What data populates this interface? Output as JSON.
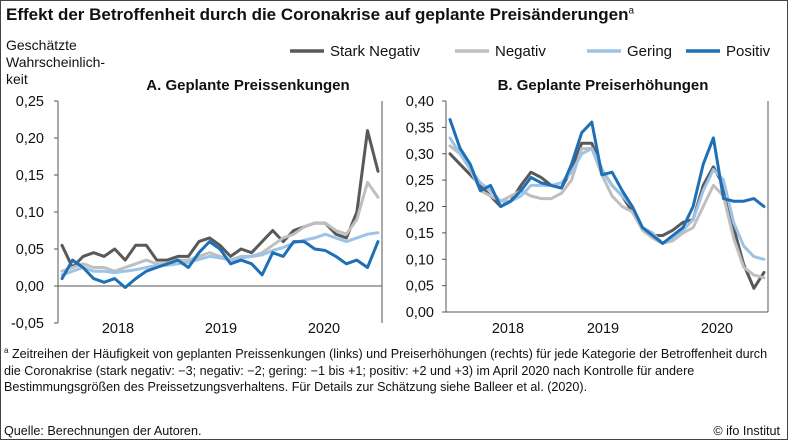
{
  "title": "Effekt der Betroffenheit durch die Coronakrise auf geplante Preisänderungen",
  "title_marker": "a",
  "ylabel": [
    "Geschätzte",
    "Wahrscheinlich-",
    "keit"
  ],
  "legend": [
    "Stark Negativ",
    "Negativ",
    "Gering",
    "Positiv"
  ],
  "footnote_marker": "a",
  "footnote": "Zeitreihen der Häufigkeit von geplanten Preissenkungen (links) und Preiserhöhungen (rechts) für jede Kategorie der Betroffenheit durch die Coronakrise (stark negativ: −3; negativ: −2; gering: −1 bis +1; positiv: +2 und +3) im April 2020 nach Kontrolle für andere Bestimmungsgrößen des Preissetzungsverhaltens. Für Details zur Schätzung siehe Balleer et al. (2020).",
  "source": "Quelle: Berechnungen der Autoren.",
  "credit": "© ifo Institut",
  "colors": {
    "stark_negativ": "#595959",
    "negativ": "#bfbfbf",
    "gering": "#9dc3e6",
    "positiv": "#1f6fb4"
  },
  "chart_data": [
    {
      "type": "line",
      "title": "A. Geplante Preissenkungen",
      "ylabel": "Geschätzte Wahrscheinlichkeit",
      "ylim": [
        -0.05,
        0.25
      ],
      "yticks": [
        "-0,05",
        "0,00",
        "0,05",
        "0,10",
        "0,15",
        "0,20",
        "0,25"
      ],
      "xticks": [
        "2018",
        "2019",
        "2020"
      ],
      "xlim": [
        0,
        28
      ],
      "grid": false,
      "series": [
        {
          "name": "Stark Negativ",
          "values": [
            0.055,
            0.025,
            0.04,
            0.045,
            0.04,
            0.05,
            0.035,
            0.055,
            0.055,
            0.035,
            0.035,
            0.04,
            0.04,
            0.06,
            0.065,
            0.055,
            0.04,
            0.05,
            0.045,
            0.06,
            0.075,
            0.06,
            0.075,
            0.08,
            0.085,
            0.085,
            0.07,
            0.065,
            0.1,
            0.21,
            0.155
          ]
        },
        {
          "name": "Negativ",
          "values": [
            0.02,
            0.025,
            0.03,
            0.025,
            0.025,
            0.02,
            0.025,
            0.03,
            0.035,
            0.03,
            0.03,
            0.035,
            0.035,
            0.04,
            0.045,
            0.04,
            0.035,
            0.04,
            0.04,
            0.045,
            0.055,
            0.065,
            0.07,
            0.08,
            0.085,
            0.085,
            0.075,
            0.07,
            0.09,
            0.14,
            0.12
          ]
        },
        {
          "name": "Gering",
          "values": [
            0.015,
            0.02,
            0.025,
            0.02,
            0.02,
            0.018,
            0.02,
            0.022,
            0.025,
            0.028,
            0.028,
            0.03,
            0.032,
            0.036,
            0.04,
            0.038,
            0.035,
            0.038,
            0.04,
            0.042,
            0.048,
            0.052,
            0.058,
            0.062,
            0.065,
            0.07,
            0.065,
            0.06,
            0.065,
            0.07,
            0.072
          ]
        },
        {
          "name": "Positiv",
          "values": [
            0.01,
            0.035,
            0.025,
            0.01,
            0.005,
            0.01,
            -0.002,
            0.01,
            0.02,
            0.025,
            0.03,
            0.035,
            0.025,
            0.045,
            0.06,
            0.05,
            0.03,
            0.035,
            0.03,
            0.015,
            0.045,
            0.04,
            0.06,
            0.06,
            0.05,
            0.048,
            0.04,
            0.03,
            0.035,
            0.025,
            0.06
          ]
        }
      ]
    },
    {
      "type": "line",
      "title": "B. Geplante Preiserhöhungen",
      "ylim": [
        0.0,
        0.4
      ],
      "yticks": [
        "0,00",
        "0,05",
        "0,10",
        "0,15",
        "0,20",
        "0,25",
        "0,30",
        "0,35",
        "0,40"
      ],
      "xticks": [
        "2018",
        "2019",
        "2020"
      ],
      "xlim": [
        0,
        28
      ],
      "grid": false,
      "series": [
        {
          "name": "Stark Negativ",
          "values": [
            0.3,
            0.28,
            0.26,
            0.24,
            0.22,
            0.2,
            0.21,
            0.24,
            0.265,
            0.255,
            0.24,
            0.235,
            0.27,
            0.32,
            0.32,
            0.27,
            0.24,
            0.22,
            0.19,
            0.16,
            0.145,
            0.145,
            0.155,
            0.17,
            0.175,
            0.24,
            0.275,
            0.24,
            0.16,
            0.09,
            0.045,
            0.075
          ]
        },
        {
          "name": "Negativ",
          "values": [
            0.315,
            0.3,
            0.27,
            0.23,
            0.22,
            0.21,
            0.22,
            0.23,
            0.22,
            0.215,
            0.215,
            0.225,
            0.25,
            0.31,
            0.31,
            0.26,
            0.22,
            0.2,
            0.19,
            0.155,
            0.14,
            0.13,
            0.135,
            0.15,
            0.16,
            0.2,
            0.24,
            0.22,
            0.14,
            0.085,
            0.07,
            0.065
          ]
        },
        {
          "name": "Gering",
          "values": [
            0.33,
            0.3,
            0.27,
            0.245,
            0.23,
            0.21,
            0.21,
            0.22,
            0.24,
            0.24,
            0.24,
            0.245,
            0.265,
            0.3,
            0.31,
            0.27,
            0.24,
            0.22,
            0.2,
            0.16,
            0.15,
            0.13,
            0.14,
            0.155,
            0.175,
            0.23,
            0.27,
            0.25,
            0.17,
            0.125,
            0.105,
            0.1
          ]
        },
        {
          "name": "Positiv",
          "values": [
            0.365,
            0.31,
            0.28,
            0.23,
            0.24,
            0.2,
            0.21,
            0.23,
            0.255,
            0.245,
            0.24,
            0.235,
            0.28,
            0.34,
            0.36,
            0.26,
            0.265,
            0.23,
            0.2,
            0.16,
            0.145,
            0.13,
            0.145,
            0.16,
            0.2,
            0.28,
            0.33,
            0.215,
            0.21,
            0.21,
            0.215,
            0.2
          ]
        }
      ]
    }
  ]
}
